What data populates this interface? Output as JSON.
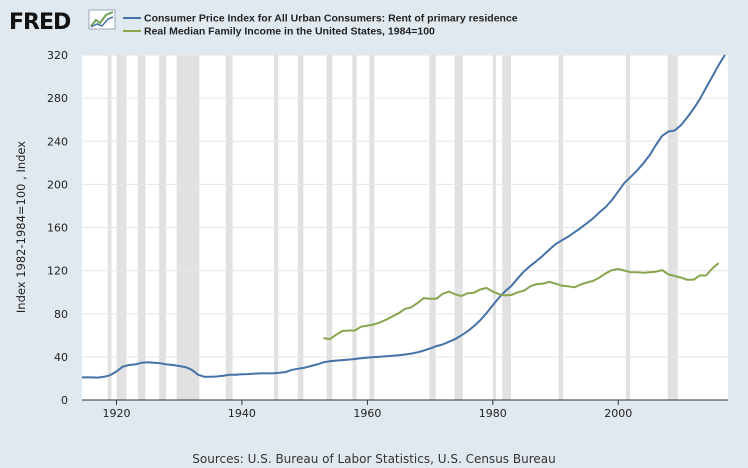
{
  "logo": {
    "text": "FRED"
  },
  "source": "Sources: U.S. Bureau of Labor Statistics, U.S. Census Bureau",
  "chart_data": {
    "type": "line",
    "ylabel": "Index 1982-1984=100 , Index",
    "ylim": [
      0,
      320
    ],
    "xlim": [
      1914.5,
      2017.5
    ],
    "yticks": [
      0,
      40,
      80,
      120,
      160,
      200,
      240,
      280,
      320
    ],
    "xticks": [
      1920,
      1940,
      1960,
      1980,
      2000
    ],
    "grid": true,
    "legend": "top-left",
    "colors": {
      "cpi": "#4572a7",
      "income": "#89a54e",
      "recession": "#e1e1e1"
    },
    "recessions": [
      [
        1918.6,
        1919.2
      ],
      [
        1920.0,
        1921.6
      ],
      [
        1923.4,
        1924.6
      ],
      [
        1926.8,
        1927.9
      ],
      [
        1929.6,
        1933.2
      ],
      [
        1937.4,
        1938.5
      ],
      [
        1945.1,
        1945.8
      ],
      [
        1948.9,
        1949.8
      ],
      [
        1953.5,
        1954.4
      ],
      [
        1957.6,
        1958.3
      ],
      [
        1960.3,
        1961.1
      ],
      [
        1969.9,
        1970.9
      ],
      [
        1973.9,
        1975.2
      ],
      [
        1980.0,
        1980.5
      ],
      [
        1981.5,
        1982.9
      ],
      [
        1990.5,
        1991.2
      ],
      [
        2001.2,
        2001.9
      ],
      [
        2007.9,
        2009.5
      ]
    ],
    "series": [
      {
        "name": "Consumer Price Index for All Urban Consumers: Rent of primary residence",
        "x": [
          1914,
          1915,
          1916,
          1917,
          1918,
          1919,
          1920,
          1921,
          1922,
          1923,
          1924,
          1925,
          1926,
          1927,
          1928,
          1929,
          1930,
          1931,
          1932,
          1933,
          1934,
          1935,
          1936,
          1937,
          1938,
          1939,
          1940,
          1941,
          1942,
          1943,
          1944,
          1945,
          1946,
          1947,
          1948,
          1949,
          1950,
          1951,
          1952,
          1953,
          1954,
          1955,
          1956,
          1957,
          1958,
          1959,
          1960,
          1961,
          1962,
          1963,
          1964,
          1965,
          1966,
          1967,
          1968,
          1969,
          1970,
          1971,
          1972,
          1973,
          1974,
          1975,
          1976,
          1977,
          1978,
          1979,
          1980,
          1981,
          1982,
          1983,
          1984,
          1985,
          1986,
          1987,
          1988,
          1989,
          1990,
          1991,
          1992,
          1993,
          1994,
          1995,
          1996,
          1997,
          1998,
          1999,
          2000,
          2001,
          2002,
          2003,
          2004,
          2005,
          2006,
          2007,
          2008,
          2009,
          2010,
          2011,
          2012,
          2013,
          2014,
          2015,
          2016,
          2017
        ],
        "values": [
          21.0,
          21.0,
          21.0,
          20.8,
          21.5,
          23.0,
          26.5,
          31.0,
          32.5,
          33.0,
          34.5,
          35.0,
          34.5,
          34.0,
          33.0,
          32.5,
          31.5,
          30.5,
          28.0,
          23.5,
          21.5,
          21.5,
          21.8,
          22.5,
          23.5,
          23.5,
          23.8,
          24.0,
          24.5,
          24.7,
          24.7,
          24.8,
          25.2,
          26.0,
          28.0,
          29.0,
          30.0,
          31.5,
          33.0,
          35.0,
          36.0,
          36.5,
          37.0,
          37.5,
          38.0,
          38.7,
          39.3,
          39.8,
          40.2,
          40.6,
          41.0,
          41.5,
          42.2,
          43.0,
          44.2,
          45.8,
          47.8,
          50.0,
          51.5,
          54.0,
          56.5,
          60.0,
          63.8,
          68.5,
          74.0,
          80.5,
          88.0,
          95.0,
          101.0,
          106.0,
          113.0,
          119.5,
          124.5,
          129.0,
          134.0,
          139.5,
          144.5,
          148.0,
          151.5,
          155.5,
          159.5,
          164.0,
          168.5,
          174.0,
          179.0,
          185.5,
          193.5,
          201.5,
          207.0,
          213.0,
          219.5,
          227.0,
          236.5,
          245.0,
          249.0,
          250.0,
          255.0,
          262.0,
          270.0,
          279.0,
          289.5,
          300.0,
          310.5,
          320.0
        ]
      },
      {
        "name": "Real Median Family Income in the United States, 1984=100",
        "x": [
          1953,
          1954,
          1955,
          1956,
          1957,
          1958,
          1959,
          1960,
          1961,
          1962,
          1963,
          1964,
          1965,
          1966,
          1967,
          1968,
          1969,
          1970,
          1971,
          1972,
          1973,
          1974,
          1975,
          1976,
          1977,
          1978,
          1979,
          1980,
          1981,
          1982,
          1983,
          1984,
          1985,
          1986,
          1987,
          1988,
          1989,
          1990,
          1991,
          1992,
          1993,
          1994,
          1995,
          1996,
          1997,
          1998,
          1999,
          2000,
          2001,
          2002,
          2003,
          2004,
          2005,
          2006,
          2007,
          2008,
          2009,
          2010,
          2011,
          2012,
          2013,
          2014,
          2015,
          2016
        ],
        "values": [
          57.5,
          56.5,
          60.5,
          64.0,
          64.5,
          64.5,
          68.0,
          69.0,
          70.0,
          72.0,
          74.5,
          77.5,
          80.5,
          84.5,
          86.0,
          90.0,
          94.5,
          94.0,
          94.0,
          98.5,
          100.5,
          98.0,
          96.5,
          99.0,
          99.5,
          102.5,
          104.0,
          100.5,
          98.0,
          97.0,
          97.5,
          100.0,
          101.5,
          105.5,
          107.5,
          108.0,
          109.5,
          108.0,
          106.0,
          105.5,
          104.5,
          107.0,
          109.0,
          110.5,
          113.5,
          117.5,
          120.5,
          121.5,
          120.0,
          118.5,
          118.5,
          118.0,
          118.5,
          119.0,
          120.5,
          116.5,
          115.0,
          113.5,
          111.5,
          111.5,
          115.5,
          115.5,
          122.0,
          127.0
        ]
      }
    ]
  }
}
